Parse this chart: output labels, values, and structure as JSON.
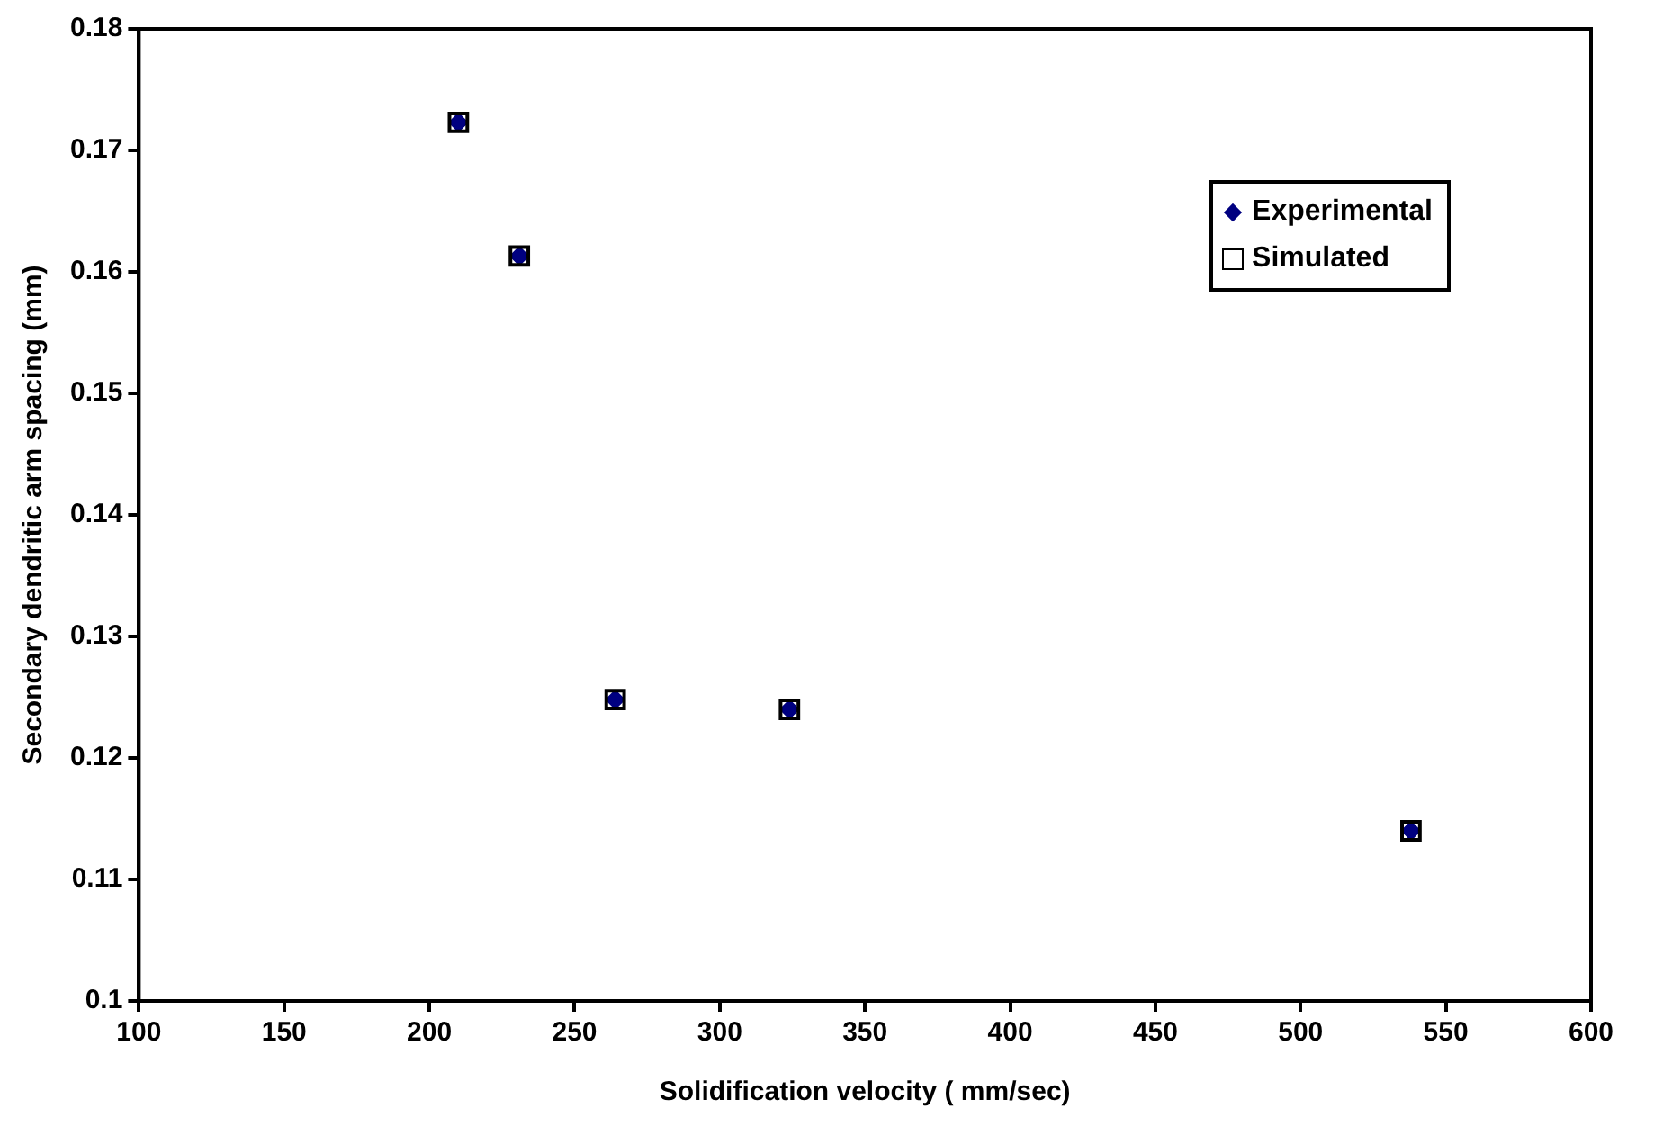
{
  "chart_data": {
    "type": "scatter",
    "xlabel": "Solidification velocity ( mm/sec)",
    "ylabel": "Secondary dendritic arm spacing (mm)",
    "x": [
      210,
      231,
      264,
      324,
      538
    ],
    "series": [
      {
        "name": "Experimental",
        "color": "#000080",
        "marker": "diamond",
        "values": [
          0.1723,
          0.1613,
          0.1248,
          0.124,
          0.114
        ]
      },
      {
        "name": "Simulated",
        "color": "#000000",
        "marker": "square",
        "values": [
          0.1723,
          0.1613,
          0.1248,
          0.124,
          0.114
        ]
      }
    ],
    "xlim": [
      100,
      600
    ],
    "xticks": [
      100,
      150,
      200,
      250,
      300,
      350,
      400,
      450,
      500,
      550,
      600
    ],
    "ylim": [
      0.1,
      0.18
    ],
    "yticks": [
      0.1,
      0.11,
      0.12,
      0.13,
      0.14,
      0.15,
      0.16,
      0.17,
      0.18
    ],
    "grid": false,
    "legend": "top right"
  }
}
